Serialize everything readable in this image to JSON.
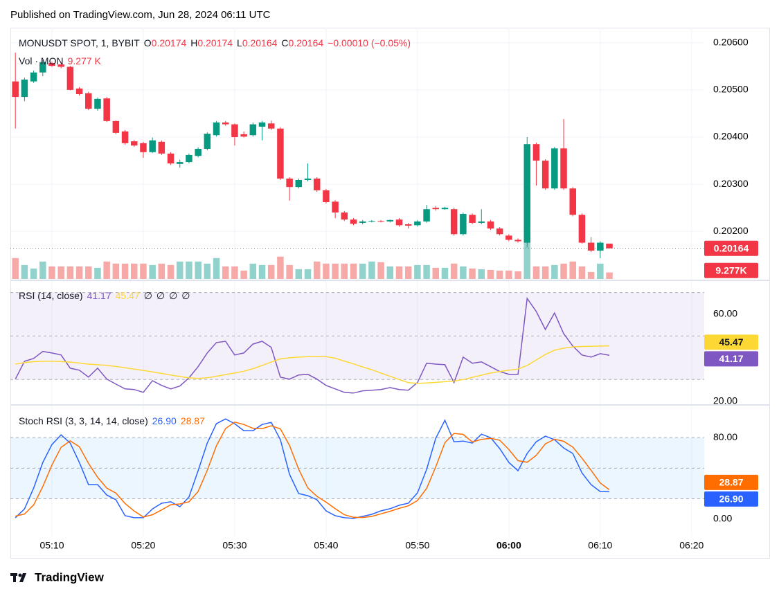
{
  "header": {
    "published": "Published on TradingView.com, Jun 28, 2024 06:11 UTC"
  },
  "footer": {
    "brand": "TradingView"
  },
  "chart_data": [
    {
      "type": "candlestick",
      "title": "MONUSDT SPOT, 1, BYBIT",
      "ohlc_letters": [
        "O",
        "H",
        "L",
        "C"
      ],
      "change": "−0.00010 (−0.05%)",
      "up_color": "#089981",
      "down_color": "#f23645",
      "x": [
        "05:06",
        "05:07",
        "05:08",
        "05:09",
        "05:10",
        "05:11",
        "05:12",
        "05:13",
        "05:14",
        "05:15",
        "05:16",
        "05:17",
        "05:18",
        "05:19",
        "05:20",
        "05:21",
        "05:22",
        "05:23",
        "05:24",
        "05:25",
        "05:26",
        "05:27",
        "05:28",
        "05:29",
        "05:30",
        "05:31",
        "05:32",
        "05:33",
        "05:34",
        "05:35",
        "05:36",
        "05:37",
        "05:38",
        "05:39",
        "05:40",
        "05:41",
        "05:42",
        "05:43",
        "05:44",
        "05:45",
        "05:46",
        "05:47",
        "05:48",
        "05:49",
        "05:50",
        "05:51",
        "05:52",
        "05:53",
        "05:54",
        "05:55",
        "05:56",
        "05:57",
        "05:58",
        "05:59",
        "06:00",
        "06:01",
        "06:02",
        "06:03",
        "06:04",
        "06:05",
        "06:06",
        "06:07",
        "06:08",
        "06:09",
        "06:10",
        "06:11"
      ],
      "open": [
        0.20518,
        0.20485,
        0.20518,
        0.20537,
        0.20557,
        0.20554,
        0.20549,
        0.20503,
        0.20493,
        0.2046,
        0.20482,
        0.20434,
        0.20412,
        0.20391,
        0.20387,
        0.20368,
        0.2039,
        0.20365,
        0.20343,
        0.20347,
        0.2036,
        0.20375,
        0.20404,
        0.20431,
        0.20427,
        0.20406,
        0.20404,
        0.20422,
        0.20429,
        0.20418,
        0.20312,
        0.20294,
        0.20309,
        0.20312,
        0.20287,
        0.20263,
        0.2024,
        0.20225,
        0.20218,
        0.20221,
        0.20222,
        0.20221,
        0.20225,
        0.20215,
        0.20213,
        0.20221,
        0.2025,
        0.20247,
        0.20247,
        0.20194,
        0.20235,
        0.20218,
        0.20221,
        0.20206,
        0.20191,
        0.20182,
        0.20176,
        0.20385,
        0.2035,
        0.20291,
        0.20376,
        0.20291,
        0.20235,
        0.20176,
        0.20159,
        0.20174
      ],
      "high": [
        0.20579,
        0.20526,
        0.20541,
        0.20563,
        0.2056,
        0.20557,
        0.20551,
        0.20506,
        0.20496,
        0.20484,
        0.20485,
        0.20435,
        0.20415,
        0.20394,
        0.2039,
        0.20399,
        0.20393,
        0.20368,
        0.20352,
        0.20365,
        0.20378,
        0.2041,
        0.20434,
        0.20434,
        0.20429,
        0.20412,
        0.20431,
        0.20434,
        0.20435,
        0.20421,
        0.20315,
        0.20312,
        0.20344,
        0.20315,
        0.2029,
        0.20266,
        0.20243,
        0.20228,
        0.20224,
        0.20224,
        0.20224,
        0.20225,
        0.20228,
        0.20218,
        0.20224,
        0.20256,
        0.20254,
        0.20252,
        0.2025,
        0.2024,
        0.20238,
        0.20247,
        0.20224,
        0.20209,
        0.20194,
        0.20185,
        0.204,
        0.20388,
        0.20353,
        0.20379,
        0.20438,
        0.20294,
        0.20238,
        0.20188,
        0.20179,
        0.20174
      ],
      "low": [
        0.20418,
        0.20476,
        0.20515,
        0.20529,
        0.20549,
        0.20546,
        0.20499,
        0.20488,
        0.20457,
        0.20456,
        0.20432,
        0.20406,
        0.20384,
        0.20379,
        0.20356,
        0.20366,
        0.20362,
        0.20341,
        0.20335,
        0.20344,
        0.20357,
        0.20372,
        0.20401,
        0.20424,
        0.20382,
        0.20399,
        0.20401,
        0.20393,
        0.20415,
        0.20309,
        0.20265,
        0.20291,
        0.20306,
        0.20284,
        0.20259,
        0.20228,
        0.20222,
        0.20213,
        0.20215,
        0.20219,
        0.20219,
        0.20219,
        0.2021,
        0.20206,
        0.2021,
        0.20218,
        0.20244,
        0.20246,
        0.20191,
        0.20191,
        0.20215,
        0.20215,
        0.20203,
        0.20191,
        0.20179,
        0.20176,
        0.20166,
        0.20297,
        0.20288,
        0.20288,
        0.20288,
        0.20232,
        0.20174,
        0.20156,
        0.20143,
        0.20164
      ],
      "close": [
        0.20485,
        0.20522,
        0.20537,
        0.20559,
        0.20551,
        0.20549,
        0.205,
        0.20491,
        0.2046,
        0.20481,
        0.20434,
        0.20409,
        0.20387,
        0.20382,
        0.20368,
        0.20393,
        0.20365,
        0.20344,
        0.20347,
        0.20362,
        0.20375,
        0.20407,
        0.20431,
        0.20427,
        0.204,
        0.20401,
        0.20427,
        0.20431,
        0.20418,
        0.20312,
        0.20294,
        0.20309,
        0.20312,
        0.20287,
        0.20262,
        0.2024,
        0.20225,
        0.20216,
        0.20221,
        0.20222,
        0.20221,
        0.20224,
        0.20213,
        0.20212,
        0.20221,
        0.20247,
        0.20247,
        0.2025,
        0.20194,
        0.20237,
        0.20218,
        0.20221,
        0.20206,
        0.20194,
        0.20182,
        0.20179,
        0.20385,
        0.2035,
        0.20291,
        0.20376,
        0.20291,
        0.20235,
        0.20176,
        0.20159,
        0.20176,
        0.20164
      ],
      "ylim": [
        0.20099,
        0.20632
      ],
      "yticks": [
        {
          "value": 0.206,
          "label": "0.20600"
        },
        {
          "value": 0.205,
          "label": "0.20500"
        },
        {
          "value": 0.204,
          "label": "0.20400"
        },
        {
          "value": 0.203,
          "label": "0.20300"
        },
        {
          "value": 0.202,
          "label": "0.20200"
        }
      ],
      "xlim": [
        "05:05",
        "06:21"
      ],
      "xticks": [
        "05:10",
        "05:20",
        "05:30",
        "05:40",
        "05:50",
        "06:00",
        "06:10",
        "06:20"
      ],
      "grid": true,
      "volume": {
        "name": "Vol · MON",
        "label": "9.277 K",
        "badge": "9.277K",
        "up_color": "#92d2cc",
        "down_color": "#f7a9a7",
        "ylim": [
          0,
          360000
        ],
        "values": [
          30000,
          20000,
          15000,
          25000,
          18000,
          18000,
          18000,
          18000,
          18000,
          16000,
          25000,
          22000,
          22000,
          22000,
          22000,
          20000,
          22000,
          20000,
          25000,
          25000,
          25000,
          22000,
          30000,
          18000,
          18000,
          12000,
          22000,
          20000,
          20000,
          32000,
          20000,
          14000,
          14000,
          25000,
          22000,
          22000,
          22000,
          22000,
          22000,
          25000,
          24000,
          18000,
          18000,
          18000,
          20000,
          20000,
          16000,
          16000,
          22000,
          18000,
          15000,
          14000,
          13000,
          12000,
          12000,
          11000,
          90000,
          18000,
          18000,
          20000,
          22000,
          25000,
          18000,
          10000,
          22000,
          9277
        ]
      }
    },
    {
      "type": "line",
      "title": "RSI (14, close)",
      "extras": [
        "∅",
        "∅",
        "∅",
        "∅"
      ],
      "ylim": [
        18,
        74
      ],
      "yticks": [
        {
          "value": 60,
          "label": "60.00"
        },
        {
          "value": 20,
          "label": "20.00"
        }
      ],
      "levels": [
        70,
        50,
        30
      ],
      "band": [
        30,
        70
      ],
      "band_color": "#7e57c2",
      "series": [
        {
          "color": "#7e57c2",
          "values": [
            30.2,
            38.4,
            39.7,
            42.9,
            42.2,
            41.3,
            35.2,
            34.3,
            31.1,
            35.2,
            30.2,
            27.9,
            25.7,
            25.4,
            24.1,
            29.5,
            27.3,
            25.7,
            27,
            30.8,
            35.9,
            42.2,
            47,
            47.6,
            41.3,
            42.2,
            46.3,
            47.6,
            44.8,
            31.1,
            30.2,
            32.1,
            32.4,
            30.2,
            27.3,
            25.7,
            24.1,
            23.8,
            24.8,
            25.1,
            25.4,
            26.3,
            25.4,
            25.1,
            28.6,
            37.5,
            37.1,
            36.8,
            28.6,
            40.3,
            37.5,
            38.1,
            35.9,
            33.7,
            32.4,
            32.4,
            67.3,
            61.3,
            53,
            60.6,
            51.1,
            45.4,
            41.3,
            40.3,
            41.9,
            41.17
          ]
        },
        {
          "color": "#fdd835",
          "values": [
            37.1,
            37.8,
            38.2,
            38.4,
            38.4,
            38.3,
            38,
            37.6,
            37.1,
            36.8,
            36.5,
            36,
            35.4,
            34.8,
            34.2,
            33.5,
            32.8,
            32.1,
            31.4,
            30.8,
            30.5,
            30.8,
            31.5,
            32.3,
            33,
            33.8,
            35,
            36.5,
            38,
            39.5,
            40,
            40.3,
            40.5,
            40.6,
            40.5,
            39.8,
            38.5,
            37.2,
            35.8,
            34.5,
            33,
            31.5,
            30,
            28.6,
            28.2,
            28.4,
            28.7,
            29,
            29.3,
            30,
            31,
            32,
            33,
            33.7,
            34.3,
            34.8,
            36.5,
            39,
            41.5,
            43.5,
            44.4,
            45,
            45.2,
            45.3,
            45.4,
            45.47
          ]
        }
      ]
    },
    {
      "type": "line",
      "title": "Stoch RSI (3, 3, 14, 14, close)",
      "ylim": [
        -17,
        110
      ],
      "yticks": [
        {
          "value": 80,
          "label": "80.00"
        },
        {
          "value": 0,
          "label": "0.00"
        }
      ],
      "levels": [
        80,
        50,
        20
      ],
      "band": [
        20,
        80
      ],
      "band_color": "#2196f3",
      "series": [
        {
          "color": "#2962ff",
          "last_label": "26.90",
          "values": [
            1.4,
            10,
            30.5,
            55.6,
            73.2,
            82.7,
            74.6,
            55.6,
            33.9,
            33.9,
            23.7,
            19,
            3.4,
            1.4,
            1.4,
            10,
            15.6,
            17,
            12.2,
            21.7,
            47.5,
            74.6,
            93.6,
            98.3,
            93.6,
            86.8,
            86.8,
            92.9,
            94.9,
            78,
            44,
            25.1,
            23,
            19,
            8.1,
            3.4,
            1.4,
            0.7,
            2.7,
            4.7,
            8.1,
            10.2,
            13.6,
            15.6,
            25.8,
            48.8,
            79.3,
            97,
            75.9,
            76.6,
            74.6,
            83.4,
            80,
            69.2,
            55.6,
            47.5,
            64.4,
            75.9,
            81.4,
            78,
            69.8,
            64.4,
            45.4,
            33.9,
            27.1,
            26.9
          ]
        },
        {
          "color": "#ff6d00",
          "values": [
            3,
            5,
            14,
            32,
            53.1,
            70.5,
            76.8,
            71,
            54.7,
            41.1,
            30.5,
            25.5,
            15.4,
            7.9,
            2.1,
            4.3,
            9,
            14.2,
            14.9,
            17,
            27.1,
            47.9,
            71.9,
            88.8,
            95.2,
            92.9,
            89.1,
            88.8,
            91.5,
            88.6,
            72.3,
            49,
            30.7,
            22.4,
            16.7,
            10.2,
            4.3,
            1.8,
            1.6,
            2.7,
            5.2,
            7.7,
            10.6,
            13.1,
            18.3,
            30.1,
            51.3,
            75,
            84.1,
            83.2,
            75.7,
            78.2,
            79.3,
            77.5,
            68.3,
            57.4,
            55.8,
            62.6,
            73.9,
            78.4,
            76.4,
            70.7,
            59.9,
            47.9,
            35.5,
            28.87
          ]
        }
      ]
    }
  ]
}
